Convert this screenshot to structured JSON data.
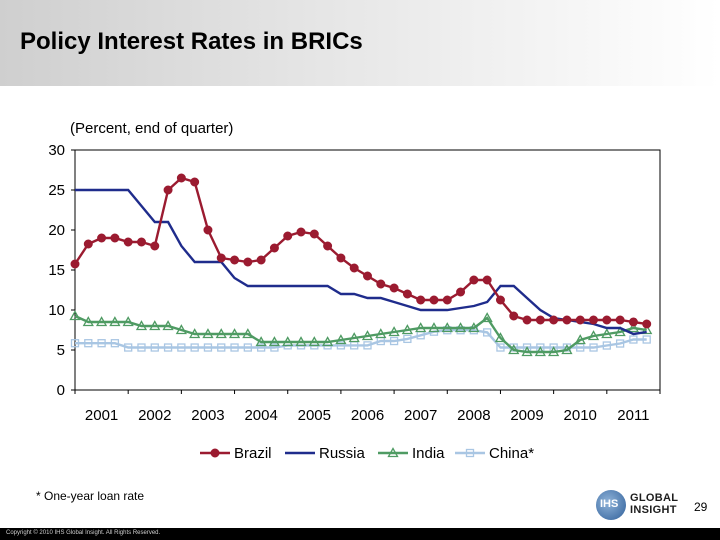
{
  "slide": {
    "title": "Policy Interest Rates in BRICs",
    "subtitle": "(Percent, end of quarter)",
    "footnote": "* One-year loan rate",
    "page_number": "29",
    "copyright": "Copyright © 2010 IHS Global Insight. All Rights Reserved.",
    "logo": {
      "mark": "IHS",
      "line1": "GLOBAL",
      "line2": "INSIGHT"
    }
  },
  "chart_data": {
    "type": "line",
    "title": "",
    "xlabel": "",
    "ylabel": "",
    "ylim": [
      0,
      30
    ],
    "yticks": [
      "0",
      "5",
      "10",
      "15",
      "20",
      "25",
      "30"
    ],
    "xlim": [
      2001.0,
      2012.0
    ],
    "xtick_labels": [
      "2001",
      "2002",
      "2003",
      "2004",
      "2005",
      "2006",
      "2007",
      "2008",
      "2009",
      "2010",
      "2011"
    ],
    "grid": false,
    "legend_position": "bottom",
    "x": [
      2001.0,
      2001.25,
      2001.5,
      2001.75,
      2002.0,
      2002.25,
      2002.5,
      2002.75,
      2003.0,
      2003.25,
      2003.5,
      2003.75,
      2004.0,
      2004.25,
      2004.5,
      2004.75,
      2005.0,
      2005.25,
      2005.5,
      2005.75,
      2006.0,
      2006.25,
      2006.5,
      2006.75,
      2007.0,
      2007.25,
      2007.5,
      2007.75,
      2008.0,
      2008.25,
      2008.5,
      2008.75,
      2009.0,
      2009.25,
      2009.5,
      2009.75,
      2010.0,
      2010.25,
      2010.5,
      2010.75,
      2011.0,
      2011.25,
      2011.5,
      2011.75
    ],
    "series": [
      {
        "name": "Brazil",
        "color": "#9b1b30",
        "marker": "circle",
        "values": [
          15.75,
          18.25,
          19.0,
          19.0,
          18.5,
          18.5,
          18.0,
          25.0,
          26.5,
          26.0,
          20.0,
          16.5,
          16.25,
          16.0,
          16.25,
          17.75,
          19.25,
          19.75,
          19.5,
          18.0,
          16.5,
          15.25,
          14.25,
          13.25,
          12.75,
          12.0,
          11.25,
          11.25,
          11.25,
          12.25,
          13.75,
          13.75,
          11.25,
          9.25,
          8.75,
          8.75,
          8.75,
          8.75,
          8.75,
          8.75,
          8.75,
          8.75,
          8.5,
          8.25
        ]
      },
      {
        "name": "Russia",
        "color": "#1f2c8c",
        "marker": "none",
        "values": [
          25,
          25,
          25,
          25,
          25,
          23,
          21,
          21,
          18,
          16,
          16,
          16,
          14,
          13,
          13,
          13,
          13,
          13,
          13,
          13,
          12,
          12,
          11.5,
          11.5,
          11,
          10.5,
          10,
          10,
          10,
          10.25,
          10.5,
          11,
          13,
          13,
          11.5,
          10,
          9,
          8.75,
          8.5,
          8.25,
          7.75,
          7.75,
          7,
          7.25
        ]
      },
      {
        "name": "India",
        "color": "#4f9b63",
        "marker": "triangle",
        "values": [
          9.25,
          8.5,
          8.5,
          8.5,
          8.5,
          8,
          8,
          8,
          7.5,
          7,
          7,
          7,
          7,
          7,
          6,
          6,
          6,
          6,
          6,
          6,
          6.25,
          6.5,
          6.75,
          7,
          7.25,
          7.5,
          7.75,
          7.75,
          7.75,
          7.75,
          7.75,
          9,
          6.5,
          5,
          4.75,
          4.75,
          4.75,
          5,
          6.25,
          6.75,
          7,
          7.25,
          7.75,
          7.5
        ]
      },
      {
        "name": "China*",
        "color": "#a9c6e3",
        "marker": "square",
        "values": [
          5.85,
          5.85,
          5.85,
          5.85,
          5.31,
          5.31,
          5.31,
          5.31,
          5.31,
          5.31,
          5.31,
          5.31,
          5.31,
          5.31,
          5.31,
          5.31,
          5.58,
          5.58,
          5.58,
          5.58,
          5.58,
          5.58,
          5.58,
          6.12,
          6.12,
          6.39,
          6.84,
          7.29,
          7.47,
          7.47,
          7.47,
          7.2,
          5.31,
          5.31,
          5.31,
          5.31,
          5.31,
          5.31,
          5.31,
          5.31,
          5.56,
          5.81,
          6.31,
          6.31
        ]
      }
    ]
  }
}
